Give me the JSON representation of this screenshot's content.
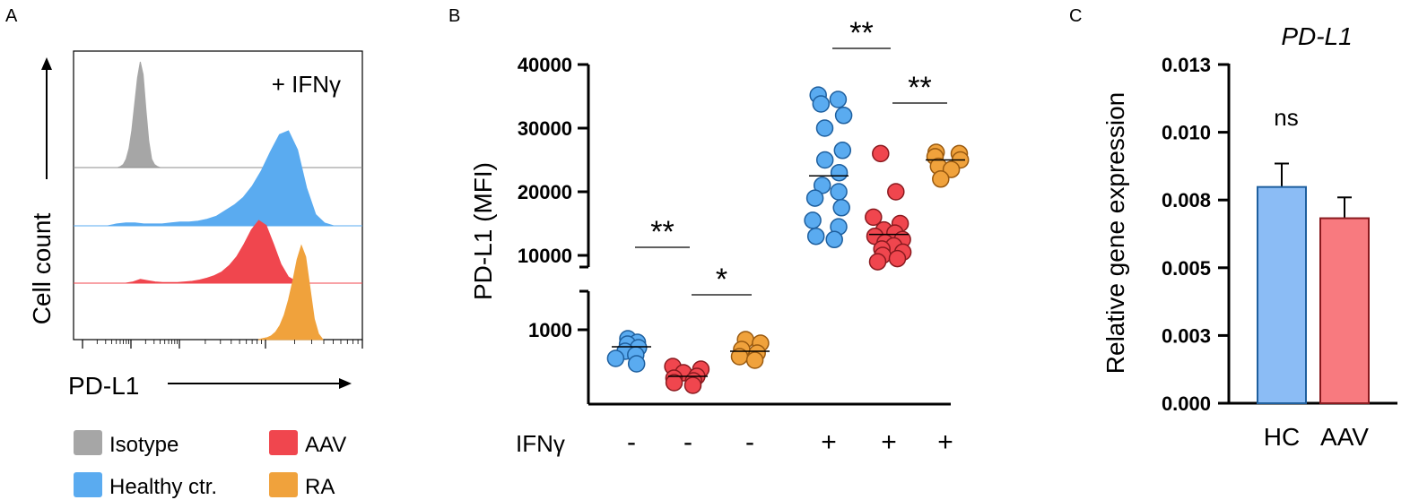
{
  "chart_data": [
    {
      "panel": "A",
      "type": "histogram",
      "condition_label": "+ IFNγ",
      "ylabel": "Cell count",
      "xlabel": "PD-L1",
      "log_x": true,
      "legend": [
        "Isotype",
        "Healthy ctr.",
        "AAV",
        "RA"
      ],
      "series": [
        {
          "name": "Isotype",
          "color": "#a6a6a6",
          "values": [
            0.0,
            0.0,
            0.01,
            0.03,
            0.08,
            0.18,
            0.35,
            0.6,
            0.85,
            1.0,
            0.88,
            0.55,
            0.25,
            0.08,
            0.03,
            0.01,
            0.0,
            0.0,
            0.0,
            0.0
          ]
        },
        {
          "name": "Healthy ctr.",
          "color": "#5aabf0",
          "values": [
            0.0,
            0.0,
            0.0,
            0.02,
            0.03,
            0.03,
            0.02,
            0.02,
            0.02,
            0.03,
            0.04,
            0.04,
            0.05,
            0.07,
            0.1,
            0.16,
            0.22,
            0.3,
            0.42,
            0.58,
            0.78,
            0.96,
            1.0,
            0.8,
            0.4,
            0.12,
            0.03,
            0.0
          ]
        },
        {
          "name": "AAV",
          "color": "#f0464e",
          "values": [
            0.0,
            0.02,
            0.06,
            0.04,
            0.02,
            0.01,
            0.01,
            0.01,
            0.02,
            0.03,
            0.05,
            0.08,
            0.12,
            0.18,
            0.28,
            0.42,
            0.62,
            0.85,
            1.0,
            0.92,
            0.62,
            0.3,
            0.1,
            0.03,
            0.0
          ]
        },
        {
          "name": "RA",
          "color": "#f0a23c",
          "values": [
            0.0,
            0.01,
            0.02,
            0.04,
            0.08,
            0.15,
            0.26,
            0.42,
            0.62,
            0.85,
            1.0,
            0.88,
            0.55,
            0.22,
            0.06,
            0.0
          ]
        }
      ]
    },
    {
      "panel": "B",
      "type": "scatter",
      "ylabel": "PD-L1 (MFI)",
      "yticks_upper": [
        "10000",
        "20000",
        "30000",
        "40000"
      ],
      "ytick_lower": "1000",
      "broken_axis": true,
      "ifn_label": "IFNγ",
      "groups": [
        {
          "name": "Healthy ctr.",
          "ifn": "-",
          "color": "#5aabf0",
          "mean": 810,
          "values": [
            900,
            860,
            840,
            800,
            760,
            720,
            680,
            620
          ]
        },
        {
          "name": "AAV",
          "ifn": "-",
          "color": "#f0464e",
          "mean": 480,
          "values": [
            590,
            560,
            520,
            480,
            460,
            430,
            410,
            380
          ]
        },
        {
          "name": "RA",
          "ifn": "-",
          "color": "#f0a23c",
          "mean": 760,
          "values": [
            890,
            850,
            780,
            740,
            700,
            660
          ]
        },
        {
          "name": "Healthy ctr.",
          "ifn": "+",
          "color": "#5aabf0",
          "mean": 22500,
          "values": [
            35200,
            34500,
            33800,
            32000,
            30000,
            26500,
            25000,
            23000,
            21000,
            20000,
            19000,
            17500,
            15500,
            14500,
            13000,
            12500
          ]
        },
        {
          "name": "AAV",
          "ifn": "+",
          "color": "#f0464e",
          "mean": 13300,
          "values": [
            26000,
            20000,
            16000,
            15000,
            14000,
            13500,
            13000,
            12500,
            12000,
            11500,
            11000,
            10500,
            10000,
            9500,
            9000
          ]
        },
        {
          "name": "RA",
          "ifn": "+",
          "color": "#f0a23c",
          "mean": 25000,
          "values": [
            26200,
            26000,
            25500,
            25000,
            24000,
            23500,
            22000
          ]
        }
      ],
      "significance": [
        {
          "label": "**",
          "from": 0,
          "to": 1
        },
        {
          "label": "*",
          "from": 1,
          "to": 2
        },
        {
          "label": "**",
          "from": 3,
          "to": 4
        },
        {
          "label": "**",
          "from": 4,
          "to": 5
        }
      ]
    },
    {
      "panel": "C",
      "type": "bar",
      "title": "PD-L1",
      "ylabel": "Relative gene expression",
      "categories": [
        "HC",
        "AAV"
      ],
      "values": [
        0.0083,
        0.0071
      ],
      "errors": [
        0.0009,
        0.0008
      ],
      "colors": [
        "#8bbcf5",
        "#f87a7f"
      ],
      "ylim": [
        0,
        0.013
      ],
      "yticks": [
        "0.000",
        "0.003",
        "0.005",
        "0.008",
        "0.010",
        "0.013"
      ],
      "annotation": "ns"
    }
  ],
  "panel_labels": {
    "a": "A",
    "b": "B",
    "c": "C"
  }
}
